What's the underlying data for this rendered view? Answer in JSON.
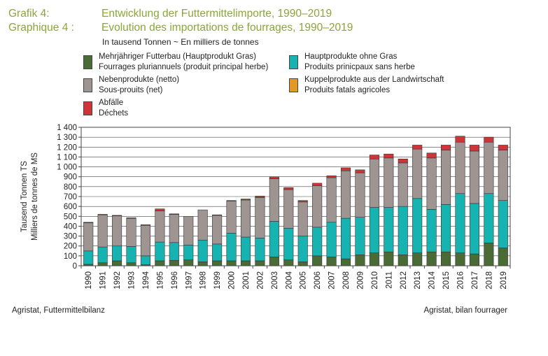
{
  "title": {
    "de_label": "Grafik 4:",
    "de_text": "Entwicklung der Futtermittelimporte, 1990–2019",
    "fr_label": "Graphique 4 :",
    "fr_text": "Evolution des importations de fourrages, 1990–2019"
  },
  "unit_line": "In tausend Tonnen   ~   En milliers de tonnes",
  "legend": [
    {
      "de": "Mehrjähriger Futterbau (Hauptprodukt Gras)",
      "fr": "Fourrages pluriannuels (produit principal herbe)",
      "color": "#4a6b35"
    },
    {
      "de": "Hauptprodukte ohne Gras",
      "fr": "Produits prinicpaux sans herbe",
      "color": "#17b3b0"
    },
    {
      "de": "Nebenprodukte (netto)",
      "fr": "Sous-prouits (net)",
      "color": "#9e9593"
    },
    {
      "de": "Kuppelprodukte aus der Landwirtschaft",
      "fr": "Produits fatals agricoles",
      "color": "#e39a25"
    },
    {
      "de": "Abfälle",
      "fr": "Déchets",
      "color": "#cf3438"
    }
  ],
  "sources": {
    "left": "Agristat, Futtermittelbilanz",
    "right": "Agristat, bilan fourrager"
  },
  "chart_data": {
    "type": "bar",
    "stacked": true,
    "ylabel": [
      "Tausend Tonnen TS",
      "Milliers de tonnes de MS"
    ],
    "ylim": [
      0,
      1400
    ],
    "yticks": [
      0,
      100,
      200,
      300,
      400,
      500,
      600,
      700,
      800,
      900,
      1000,
      1100,
      1200,
      1300,
      1400
    ],
    "ytick_labels": [
      "0",
      "100",
      "200",
      "300",
      "400",
      "500",
      "600",
      "700",
      "800",
      "900",
      "1 000",
      "1 100",
      "1 200",
      "1 300",
      "1 400"
    ],
    "categories": [
      "1990",
      "1991",
      "1992",
      "1993",
      "1994",
      "1995",
      "1996",
      "1997",
      "1998",
      "1999",
      "2000",
      "2001",
      "2002",
      "2003",
      "2004",
      "2005",
      "2006",
      "2007",
      "2008",
      "2009",
      "2010",
      "2011",
      "2012",
      "2013",
      "2014",
      "2015",
      "2016",
      "2017",
      "2018",
      "2019"
    ],
    "series": [
      {
        "name": "Mehrjähriger Futterbau (Hauptprodukt Gras)",
        "color": "#4a6b35",
        "values": [
          15,
          30,
          50,
          30,
          10,
          50,
          55,
          60,
          40,
          50,
          50,
          50,
          50,
          90,
          60,
          40,
          100,
          90,
          70,
          110,
          130,
          140,
          110,
          130,
          140,
          140,
          130,
          120,
          230,
          180
        ]
      },
      {
        "name": "Hauptprodukte ohne Gras",
        "color": "#17b3b0",
        "values": [
          135,
          160,
          150,
          165,
          90,
          190,
          180,
          150,
          220,
          170,
          280,
          240,
          230,
          360,
          320,
          260,
          290,
          350,
          410,
          380,
          460,
          450,
          490,
          550,
          430,
          480,
          600,
          510,
          500,
          480
        ]
      },
      {
        "name": "Nebenprodukte (netto)",
        "color": "#9e9593",
        "values": [
          285,
          325,
          305,
          285,
          310,
          315,
          285,
          290,
          305,
          290,
          325,
          375,
          410,
          430,
          390,
          345,
          420,
          450,
          480,
          450,
          490,
          500,
          440,
          500,
          520,
          550,
          520,
          530,
          520,
          510
        ]
      },
      {
        "name": "Kuppelprodukte aus der Landwirtschaft",
        "color": "#e39a25",
        "values": [
          0,
          0,
          0,
          0,
          0,
          0,
          0,
          0,
          0,
          0,
          0,
          0,
          0,
          0,
          0,
          0,
          0,
          0,
          0,
          0,
          0,
          0,
          0,
          0,
          0,
          0,
          0,
          0,
          0,
          0
        ]
      },
      {
        "name": "Abfälle",
        "color": "#cf3438",
        "values": [
          5,
          5,
          5,
          5,
          5,
          20,
          5,
          0,
          0,
          5,
          5,
          10,
          15,
          20,
          20,
          15,
          25,
          20,
          30,
          30,
          40,
          40,
          40,
          40,
          50,
          50,
          60,
          60,
          50,
          50
        ]
      }
    ]
  }
}
